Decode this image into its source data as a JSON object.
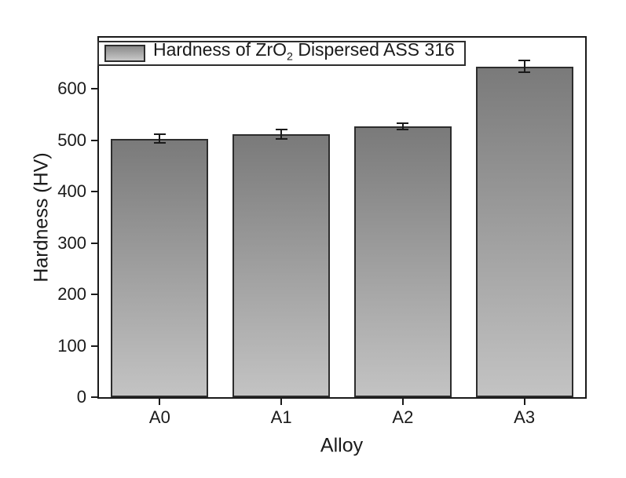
{
  "chart_data": {
    "type": "bar",
    "title": "",
    "legend": {
      "full_text": "Hardness of ZrO2 Dispersed ASS 316",
      "text_before_sub": "Hardness of ZrO",
      "subscript": "2",
      "text_after_sub": " Dispersed ASS 316",
      "position": "top-left-inside"
    },
    "categories": [
      "A0",
      "A1",
      "A2",
      "A3"
    ],
    "values": [
      503,
      512,
      527,
      644
    ],
    "errors": [
      10,
      10,
      8,
      13
    ],
    "xlabel": "Alloy",
    "ylabel": "Hardness (HV)",
    "ylim": [
      0,
      700
    ],
    "yticks": [
      0,
      100,
      200,
      300,
      400,
      500,
      600
    ],
    "grid": false,
    "style": {
      "bar_gradient_top": "#7a7a7a",
      "bar_gradient_bottom": "#c3c3c3",
      "bar_border": "#2d2d2d",
      "frame_color": "#1a1a1a",
      "error_bar_color": "#1a1a1a",
      "background": "#ffffff"
    }
  }
}
